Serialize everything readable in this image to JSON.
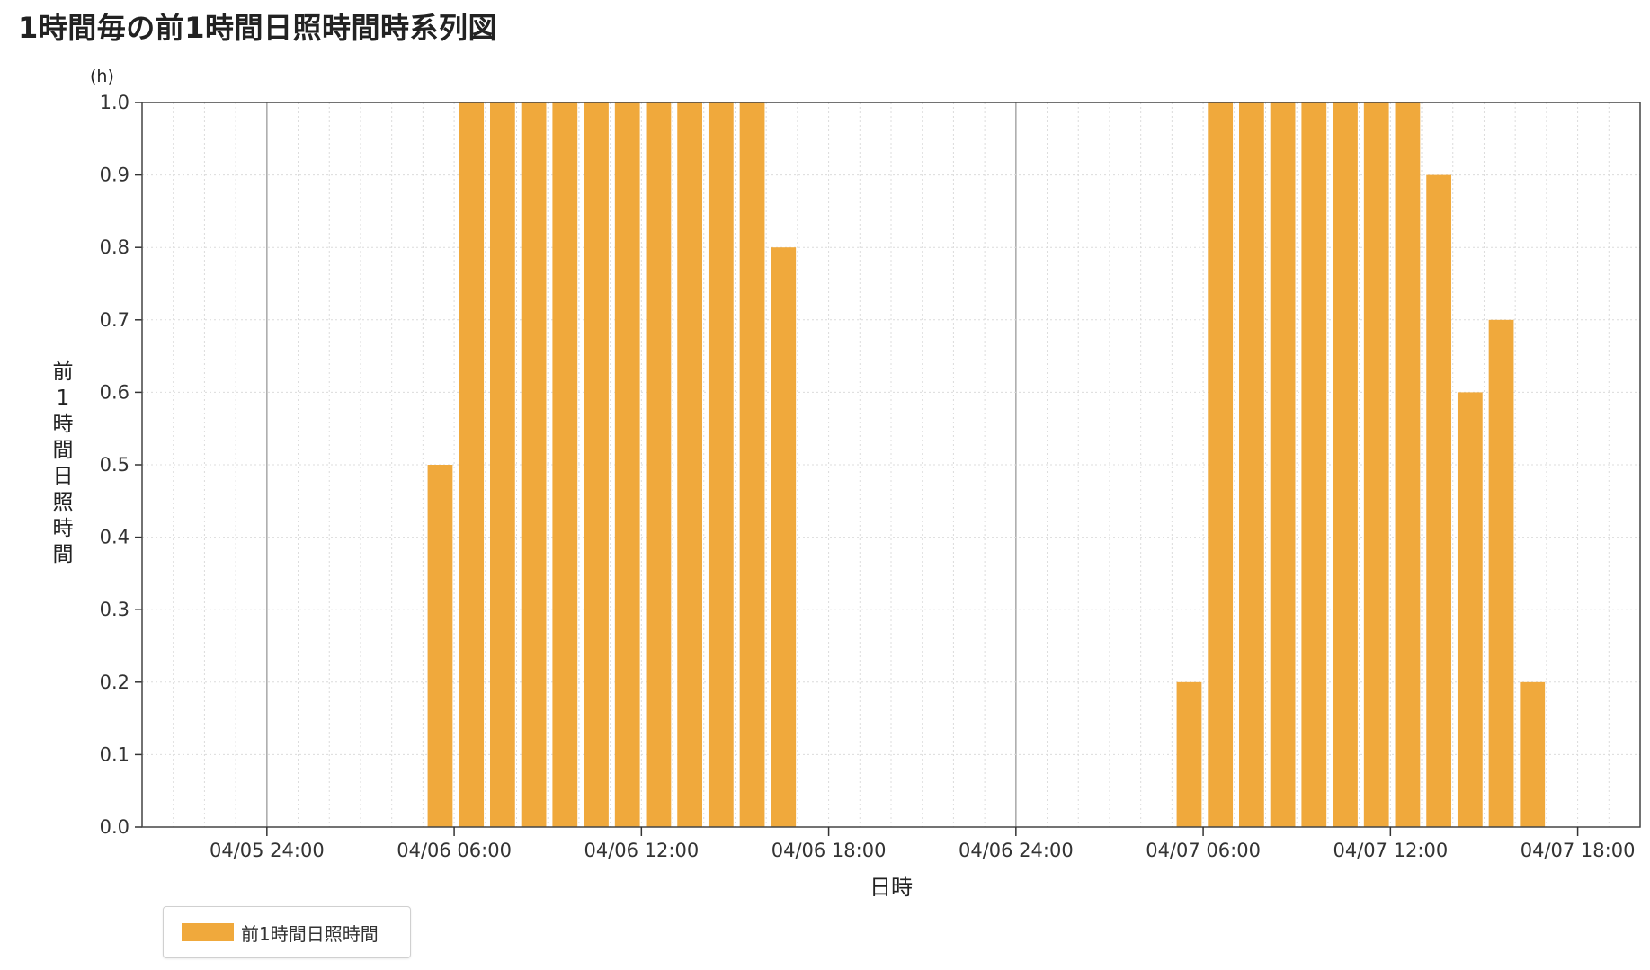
{
  "page": {
    "title": "1時間毎の前1時間日照時間時系列図"
  },
  "chart_data": {
    "type": "bar",
    "title": "1時間毎の前1時間日照時間時系列図",
    "xlabel": "日時",
    "ylabel": "前1時間日照時間",
    "yunit": "(h)",
    "ylim": [
      0,
      1.0
    ],
    "yticks": [
      "0.0",
      "0.1",
      "0.2",
      "0.3",
      "0.4",
      "0.5",
      "0.6",
      "0.7",
      "0.8",
      "0.9",
      "1.0"
    ],
    "xrange": [
      "04/05 20:00",
      "04/07 20:00"
    ],
    "xticks": [
      "04/05 24:00",
      "04/06 06:00",
      "04/06 12:00",
      "04/06 18:00",
      "04/06 24:00",
      "04/07 06:00",
      "04/07 12:00",
      "04/07 18:00"
    ],
    "grid": true,
    "legend_position": "bottom-left",
    "colors": {
      "bar": "#f0a93c"
    },
    "series": [
      {
        "name": "前1時間日照時間",
        "points": [
          {
            "x": "04/06 06:00",
            "y": 0.5
          },
          {
            "x": "04/06 07:00",
            "y": 1.0
          },
          {
            "x": "04/06 08:00",
            "y": 1.0
          },
          {
            "x": "04/06 09:00",
            "y": 1.0
          },
          {
            "x": "04/06 10:00",
            "y": 1.0
          },
          {
            "x": "04/06 11:00",
            "y": 1.0
          },
          {
            "x": "04/06 12:00",
            "y": 1.0
          },
          {
            "x": "04/06 13:00",
            "y": 1.0
          },
          {
            "x": "04/06 14:00",
            "y": 1.0
          },
          {
            "x": "04/06 15:00",
            "y": 1.0
          },
          {
            "x": "04/06 16:00",
            "y": 1.0
          },
          {
            "x": "04/06 17:00",
            "y": 0.8
          },
          {
            "x": "04/07 06:00",
            "y": 0.2
          },
          {
            "x": "04/07 07:00",
            "y": 1.0
          },
          {
            "x": "04/07 08:00",
            "y": 1.0
          },
          {
            "x": "04/07 09:00",
            "y": 1.0
          },
          {
            "x": "04/07 10:00",
            "y": 1.0
          },
          {
            "x": "04/07 11:00",
            "y": 1.0
          },
          {
            "x": "04/07 12:00",
            "y": 1.0
          },
          {
            "x": "04/07 13:00",
            "y": 1.0
          },
          {
            "x": "04/07 14:00",
            "y": 0.9
          },
          {
            "x": "04/07 15:00",
            "y": 0.6
          },
          {
            "x": "04/07 16:00",
            "y": 0.7
          },
          {
            "x": "04/07 17:00",
            "y": 0.2
          }
        ]
      }
    ]
  }
}
